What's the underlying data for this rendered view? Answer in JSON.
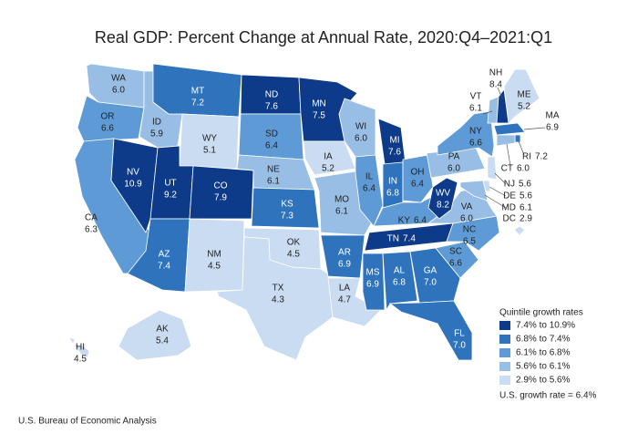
{
  "chart_data": {
    "type": "choropleth",
    "title": "Real GDP: Percent Change at Annual Rate, 2020:Q4–2021:Q1",
    "regions": [
      "WA",
      "OR",
      "CA",
      "NV",
      "ID",
      "MT",
      "WY",
      "UT",
      "CO",
      "AZ",
      "NM",
      "ND",
      "SD",
      "NE",
      "KS",
      "OK",
      "TX",
      "MN",
      "IA",
      "MO",
      "AR",
      "LA",
      "WI",
      "IL",
      "MI",
      "IN",
      "OH",
      "KY",
      "TN",
      "MS",
      "AL",
      "GA",
      "FL",
      "SC",
      "NC",
      "VA",
      "WV",
      "PA",
      "NY",
      "VT",
      "NH",
      "ME",
      "MA",
      "RI",
      "CT",
      "NJ",
      "DE",
      "MD",
      "DC",
      "AK",
      "HI"
    ],
    "values": [
      6.0,
      6.6,
      6.3,
      10.9,
      5.9,
      7.2,
      5.1,
      9.2,
      7.9,
      7.4,
      4.5,
      7.6,
      6.4,
      6.1,
      7.3,
      4.5,
      4.3,
      7.5,
      5.2,
      6.1,
      6.9,
      4.7,
      6.0,
      6.4,
      7.6,
      6.8,
      6.4,
      6.4,
      7.4,
      6.9,
      6.8,
      7.0,
      7.0,
      6.6,
      6.5,
      6.0,
      8.2,
      6.0,
      6.6,
      6.1,
      8.4,
      5.2,
      6.9,
      7.2,
      6.0,
      5.6,
      5.6,
      6.1,
      2.9,
      5.4,
      4.5
    ],
    "value_labels": [
      "6.0",
      "6.6",
      "6.3",
      "10.9",
      "5.9",
      "7.2",
      "5.1",
      "9.2",
      "7.9",
      "7.4",
      "4.5",
      "7.6",
      "6.4",
      "6.1",
      "7.3",
      "4.5",
      "4.3",
      "7.5",
      "5.2",
      "6.1",
      "6.9",
      "4.7",
      "6.0",
      "6.4",
      "7.6",
      "6.8",
      "6.4",
      "6.4",
      "7.4",
      "6.9",
      "6.8",
      "7.0",
      "7.0",
      "6.6",
      "6.5",
      "6.0",
      "8.2",
      "6.0",
      "6.6",
      "6.1",
      "8.4",
      "5.2",
      "6.9",
      "7.2",
      "6.0",
      "5.6",
      "5.6",
      "6.1",
      "2.9",
      "5.4",
      "4.5"
    ],
    "colors": [
      "#98bee6",
      "#5e9bd6",
      "#5e9bd6",
      "#0d3b8a",
      "#98bee6",
      "#2f73bd",
      "#cadcf1",
      "#0d3b8a",
      "#0d3b8a",
      "#2f73bd",
      "#cadcf1",
      "#0d3b8a",
      "#5e9bd6",
      "#98bee6",
      "#2f73bd",
      "#cadcf1",
      "#cadcf1",
      "#0d3b8a",
      "#cadcf1",
      "#98bee6",
      "#2f73bd",
      "#cadcf1",
      "#98bee6",
      "#5e9bd6",
      "#0d3b8a",
      "#2f73bd",
      "#5e9bd6",
      "#5e9bd6",
      "#0d3b8a",
      "#2f73bd",
      "#2f73bd",
      "#2f73bd",
      "#2f73bd",
      "#5e9bd6",
      "#5e9bd6",
      "#98bee6",
      "#0d3b8a",
      "#98bee6",
      "#5e9bd6",
      "#98bee6",
      "#0d3b8a",
      "#cadcf1",
      "#2f73bd",
      "#2f73bd",
      "#98bee6",
      "#cadcf1",
      "#cadcf1",
      "#98bee6",
      "#cadcf1",
      "#cadcf1",
      "#cadcf1"
    ],
    "legend": {
      "title": "Quintile growth rates",
      "entries": [
        {
          "label": "7.4% to 10.9%",
          "color": "#0d3b8a"
        },
        {
          "label": "6.8% to 7.4%",
          "color": "#2f73bd"
        },
        {
          "label": "6.1% to 6.8%",
          "color": "#5e9bd6"
        },
        {
          "label": "5.6% to 6.1%",
          "color": "#98bee6"
        },
        {
          "label": "2.9% to 5.6%",
          "color": "#cadcf1"
        }
      ],
      "note": "U.S. growth rate = 6.4%"
    },
    "source": "U.S. Bureau of Economic Analysis"
  }
}
